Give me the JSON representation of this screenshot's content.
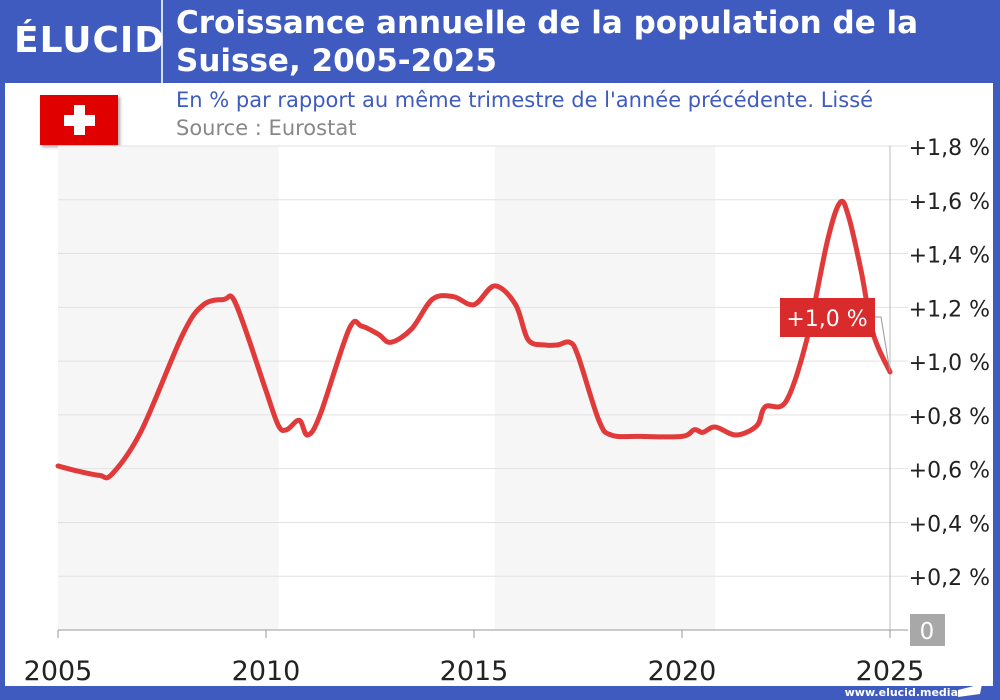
{
  "header": {
    "logo": "ÉLUCID",
    "title": "Croissance annuelle de la population de la Suisse, 2005-2025",
    "subtitle": "En % par rapport au même trimestre de l'année précédente. Lissé",
    "source": "Source : Eurostat"
  },
  "footer": {
    "url": "www.elucid.media"
  },
  "colors": {
    "brand": "#3f5bbf",
    "line": "#e03a3a",
    "flag": "#e00000"
  },
  "chart_data": {
    "type": "line",
    "xlim": [
      2005,
      2025
    ],
    "ylim": [
      0,
      1.8
    ],
    "x_ticks": [
      "2005",
      "2010",
      "2015",
      "2020",
      "2025"
    ],
    "y_ticks": [
      "0",
      "+0,2 %",
      "+0,4 %",
      "+0,6 %",
      "+0,8 %",
      "+1,0 %",
      "+1,2 %",
      "+1,4 %",
      "+1,6 %",
      "+1,8 %"
    ],
    "grid": true,
    "shaded_ranges": [
      [
        2005,
        2010.3
      ],
      [
        2015.5,
        2020.8
      ]
    ],
    "annotation": "+1,0 %",
    "series": [
      {
        "x": [
          2005,
          2005.5,
          2006,
          2006.3,
          2007,
          2008,
          2008.5,
          2009,
          2009.2,
          2009.5,
          2010,
          2010.3,
          2010.5,
          2010.8,
          2011,
          2011.3,
          2012,
          2012.3,
          2012.7,
          2013,
          2013.5,
          2014,
          2014.5,
          2015,
          2015.5,
          2016,
          2016.3,
          2016.7,
          2017,
          2017.3,
          2017.5,
          2018,
          2018.3,
          2019,
          2020,
          2020.3,
          2020.5,
          2020.8,
          2021.3,
          2021.8,
          2022,
          2022.5,
          2023,
          2023.5,
          2023.8,
          2024,
          2024.3,
          2024.6,
          2025
        ],
        "y": [
          0.61,
          0.59,
          0.575,
          0.58,
          0.74,
          1.1,
          1.21,
          1.23,
          1.235,
          1.12,
          0.89,
          0.76,
          0.745,
          0.78,
          0.725,
          0.8,
          1.12,
          1.13,
          1.1,
          1.07,
          1.12,
          1.23,
          1.24,
          1.21,
          1.28,
          1.21,
          1.08,
          1.06,
          1.06,
          1.07,
          1.02,
          0.78,
          0.725,
          0.72,
          0.72,
          0.745,
          0.735,
          0.755,
          0.725,
          0.76,
          0.83,
          0.85,
          1.08,
          1.45,
          1.59,
          1.54,
          1.34,
          1.1,
          0.96
        ]
      }
    ]
  }
}
